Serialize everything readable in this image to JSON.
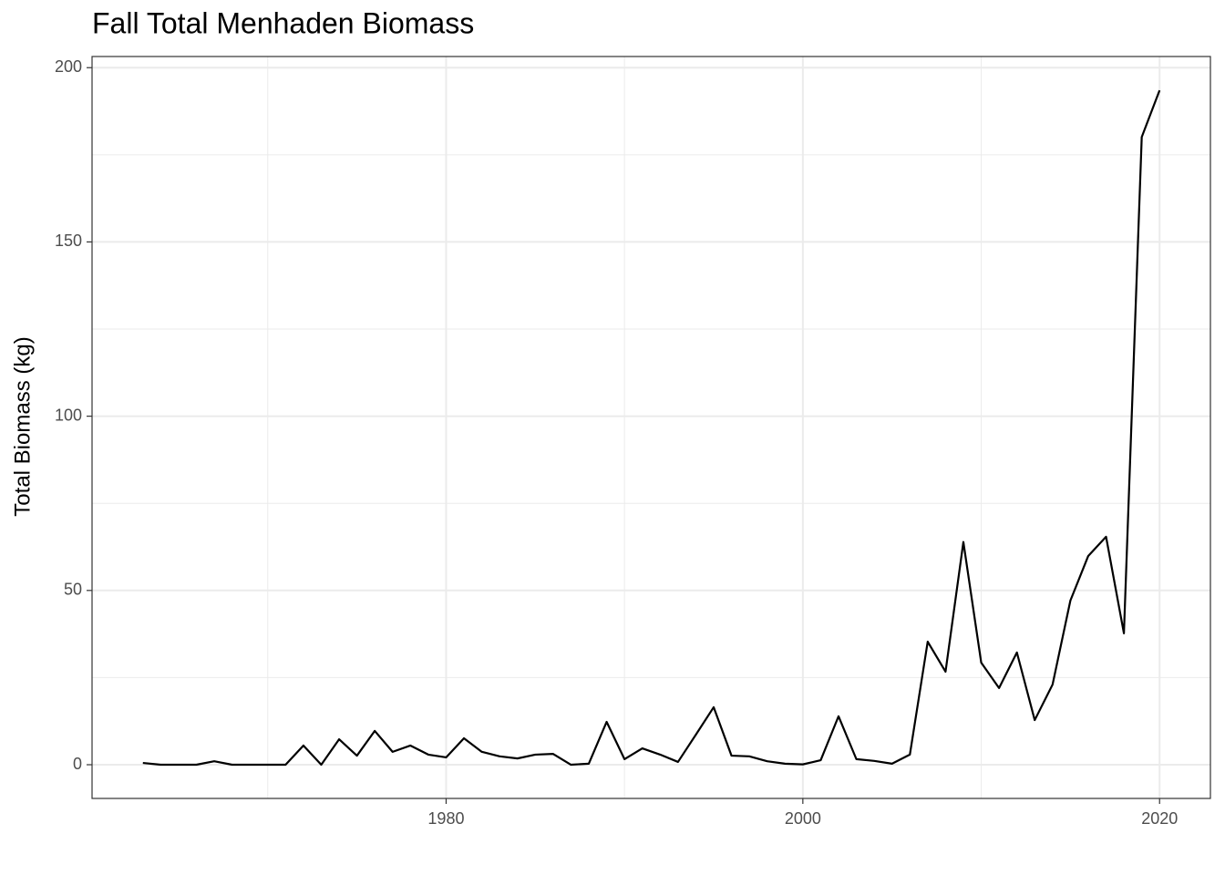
{
  "chart_data": {
    "type": "line",
    "title": "Fall Total Menhaden Biomass",
    "y_label": "Total Biomass (kg)",
    "x": [
      1963,
      1964,
      1965,
      1966,
      1967,
      1968,
      1969,
      1970,
      1971,
      1972,
      1973,
      1974,
      1975,
      1976,
      1977,
      1978,
      1979,
      1980,
      1981,
      1982,
      1983,
      1984,
      1985,
      1986,
      1987,
      1988,
      1989,
      1990,
      1991,
      1992,
      1993,
      1994,
      1995,
      1996,
      1997,
      1998,
      1999,
      2000,
      2001,
      2002,
      2003,
      2004,
      2005,
      2006,
      2007,
      2008,
      2009,
      2010,
      2011,
      2012,
      2013,
      2014,
      2015,
      2016,
      2017,
      2018,
      2019,
      2020
    ],
    "series": [
      {
        "name": "Total Biomass",
        "color": "#000000",
        "values": [
          0.5,
          0,
          0,
          0,
          1,
          0,
          0,
          0,
          0,
          5.5,
          0,
          7.3,
          2.6,
          9.7,
          3.7,
          5.5,
          2.9,
          2.1,
          7.6,
          3.7,
          2.4,
          1.8,
          2.9,
          3.1,
          0,
          0.3,
          12.3,
          1.6,
          4.7,
          2.9,
          0.8,
          8.6,
          16.5,
          2.6,
          2.4,
          1,
          0.3,
          0.1,
          1.3,
          13.9,
          1.6,
          1.1,
          0.3,
          2.9,
          35.3,
          26.7,
          63.9,
          29.3,
          22,
          32.2,
          12.8,
          23,
          47.1,
          59.9,
          65.4,
          37.7,
          180.1,
          193.5
        ]
      }
    ],
    "xlim": [
      1960.15,
      2022.85
    ],
    "xticks": [
      1980,
      2000,
      2020
    ],
    "x_minor_ticks": [
      1970,
      1990,
      2010
    ],
    "ylim": [
      -9.675,
      203.2
    ],
    "yticks": [
      0,
      50,
      100,
      150,
      200
    ],
    "y_minor_ticks": [
      25,
      75,
      125,
      175
    ],
    "grid": true
  }
}
